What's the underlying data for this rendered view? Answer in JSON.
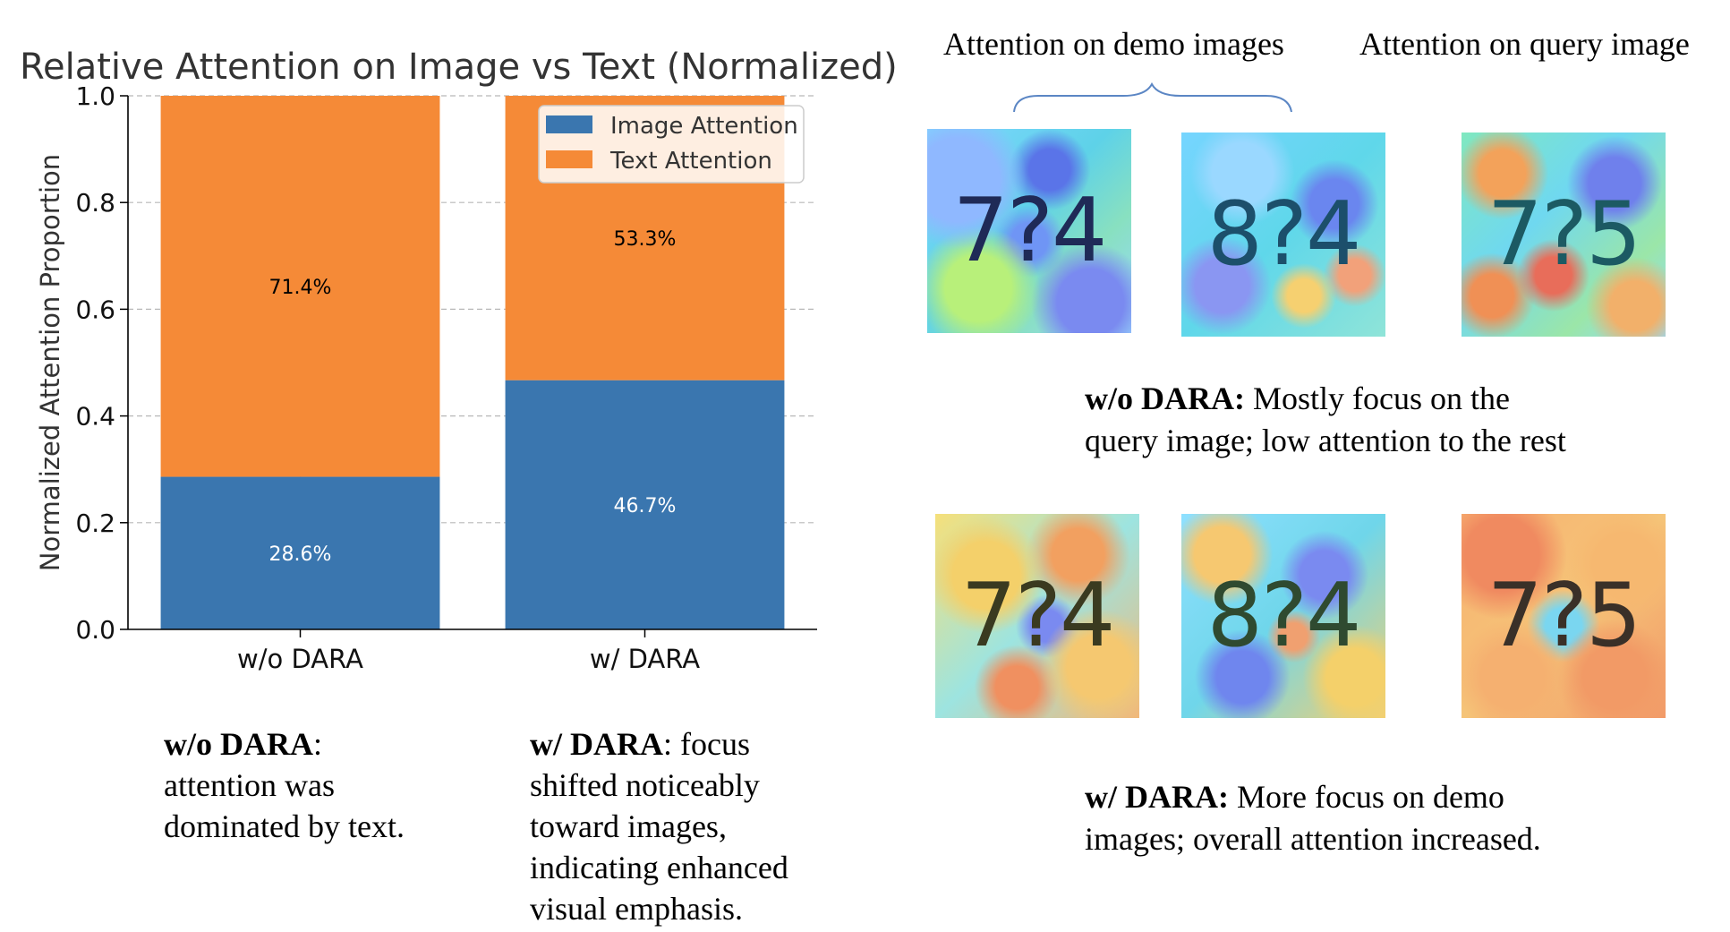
{
  "chart_data": {
    "type": "bar",
    "stacked": true,
    "title": "Relative Attention on Image vs Text (Normalized)",
    "xlabel": "",
    "ylabel": "Normalized Attention Proportion",
    "ylim": [
      0,
      1.0
    ],
    "yticks": [
      "0.0",
      "0.2",
      "0.4",
      "0.6",
      "0.8",
      "1.0"
    ],
    "categories": [
      "w/o DARA",
      "w/ DARA"
    ],
    "series": [
      {
        "name": "Image Attention",
        "values": [
          0.286,
          0.467
        ],
        "labels": [
          "28.6%",
          "46.7%"
        ],
        "color": "#3a76af"
      },
      {
        "name": "Text Attention",
        "values": [
          0.714,
          0.533
        ],
        "labels": [
          "71.4%",
          "53.3%"
        ],
        "color": "#f58a37"
      }
    ],
    "grid": true,
    "legend_position": "top-right"
  },
  "captions": {
    "left": {
      "bold": "w/o DARA",
      "lines": [
        ":",
        "attention was",
        "dominated by text."
      ]
    },
    "right": {
      "bold": "w/ DARA",
      "lines": [
        ": focus",
        "shifted noticeably",
        "toward images,",
        "indicating enhanced",
        "visual emphasis."
      ]
    }
  },
  "heatmaps": {
    "header_demo": "Attention on demo images",
    "header_query": "Attention on query image",
    "row1": {
      "images": [
        {
          "digits": "7?4",
          "icon": "heatmap-image"
        },
        {
          "digits": "8?4",
          "icon": "heatmap-image"
        },
        {
          "digits": "7?5",
          "icon": "heatmap-image"
        }
      ],
      "caption_bold": "w/o DARA:",
      "caption_line1": " Mostly focus on the",
      "caption_line2": "query image; low attention to the rest"
    },
    "row2": {
      "images": [
        {
          "digits": "7?4",
          "icon": "heatmap-image"
        },
        {
          "digits": "8?4",
          "icon": "heatmap-image"
        },
        {
          "digits": "7?5",
          "icon": "heatmap-image"
        }
      ],
      "caption_bold": "w/ DARA:",
      "caption_line1": " More focus on demo",
      "caption_line2": "images; overall attention increased."
    }
  }
}
